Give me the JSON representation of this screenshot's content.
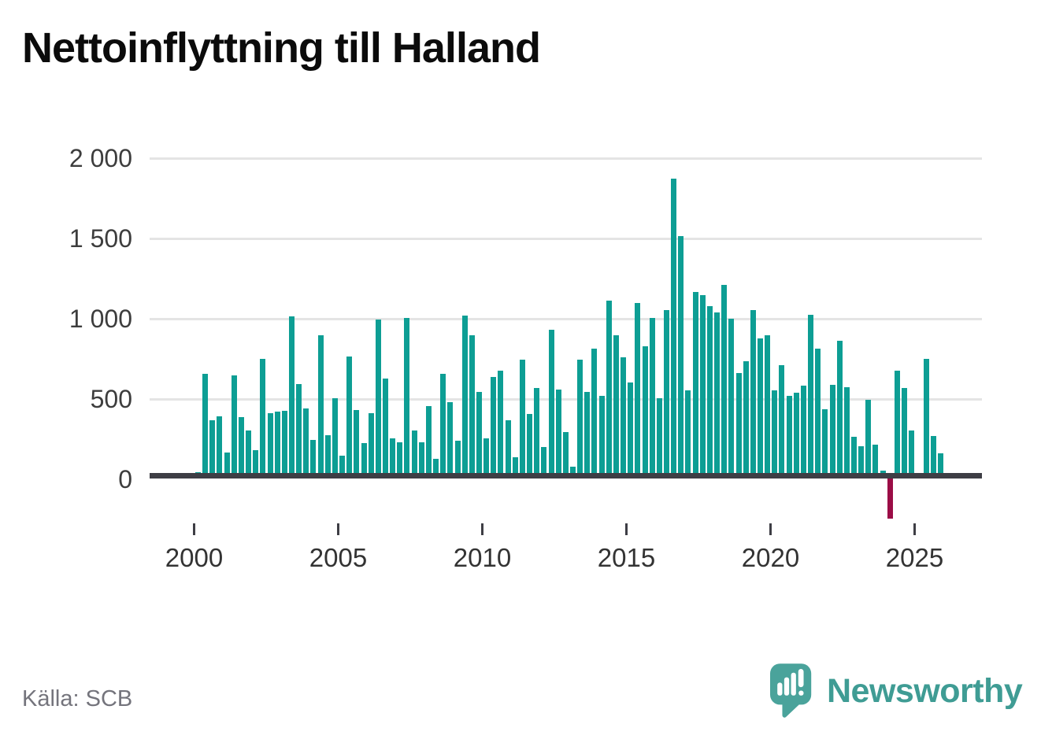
{
  "title": "Nettoinflyttning till Halland",
  "source": "Källa: SCB",
  "logo": {
    "text": "Newsworthy",
    "icon": "newsworthy-bubble-chart-icon"
  },
  "colors": {
    "bar": "#0d9e94",
    "negative_bar": "#9b0d46",
    "gridline": "#e4e4e4",
    "zero_axis": "#3e3e45",
    "tick_label": "#3d3d3d",
    "title_text": "#0b0b0b",
    "source_text": "#74747c",
    "logo_teal": "#4aa39b"
  },
  "chart_data": {
    "type": "bar",
    "title": "Nettoinflyttning till Halland",
    "xlabel": "",
    "ylabel": "",
    "grid": true,
    "legend": false,
    "yticks": [
      0,
      500,
      1000,
      1500,
      2000
    ],
    "ytick_labels": [
      "0",
      "500",
      "1 000",
      "1 500",
      "2 000"
    ],
    "ylim": [
      -300,
      2100
    ],
    "xtick_labels": [
      "2000",
      "2005",
      "2010",
      "2015",
      "2020",
      "2025"
    ],
    "x_start_year": 2000,
    "periods_per_year": 4,
    "values": [
      40,
      650,
      365,
      385,
      160,
      640,
      380,
      300,
      175,
      745,
      405,
      415,
      420,
      1010,
      590,
      435,
      240,
      890,
      270,
      500,
      140,
      760,
      425,
      220,
      405,
      990,
      625,
      250,
      225,
      1000,
      300,
      225,
      450,
      125,
      650,
      475,
      235,
      1015,
      890,
      540,
      250,
      630,
      670,
      365,
      130,
      740,
      400,
      565,
      195,
      925,
      555,
      290,
      75,
      740,
      540,
      810,
      515,
      1110,
      890,
      755,
      600,
      1095,
      825,
      1000,
      500,
      1050,
      1870,
      1510,
      550,
      1160,
      1140,
      1075,
      1035,
      1205,
      995,
      655,
      730,
      1050,
      875,
      890,
      550,
      705,
      515,
      535,
      580,
      1020,
      810,
      430,
      585,
      860,
      570,
      260,
      200,
      490,
      210,
      50,
      -250,
      670,
      565,
      300,
      0,
      745,
      265,
      155
    ]
  }
}
